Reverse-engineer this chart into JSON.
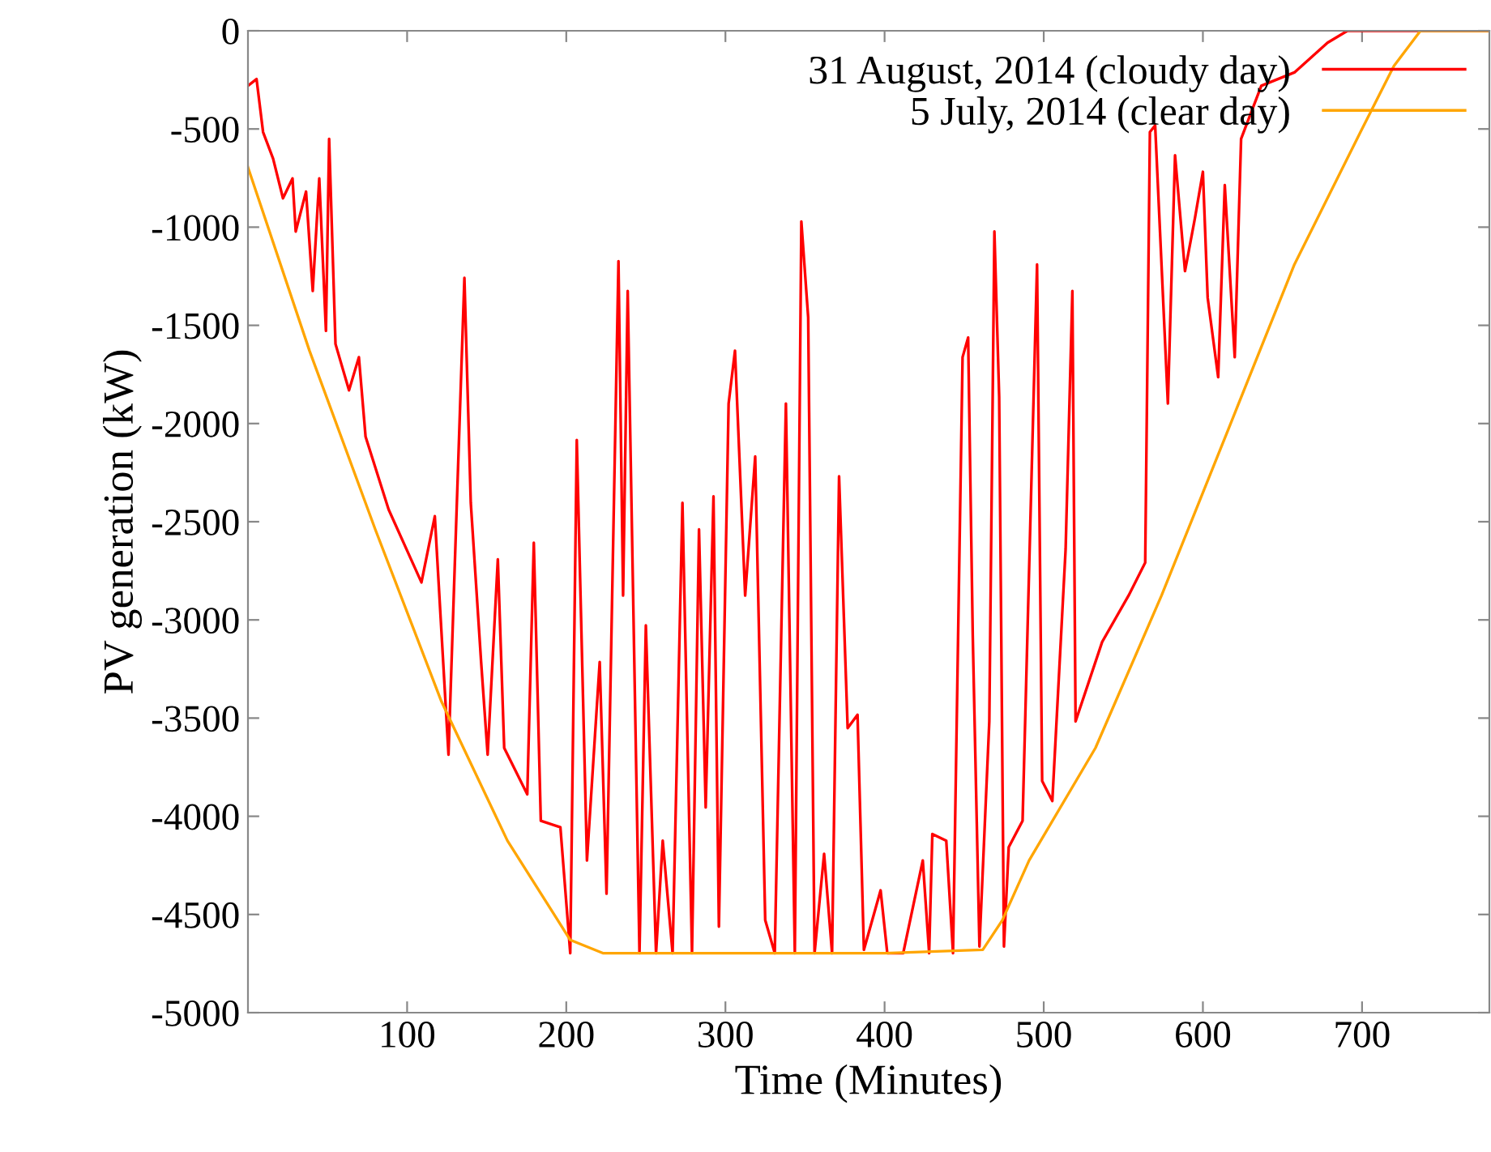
{
  "chart_data": {
    "type": "line",
    "xlabel": "Time (Minutes)",
    "ylabel": "PV generation (kW)",
    "xlim": [
      0,
      780
    ],
    "ylim": [
      -5000,
      0
    ],
    "xticks": [
      100,
      200,
      300,
      400,
      500,
      600,
      700
    ],
    "yticks": [
      0,
      -500,
      -1000,
      -1500,
      -2000,
      -2500,
      -3000,
      -3500,
      -4000,
      -4500,
      -5000
    ],
    "grid": false,
    "legend": "top right",
    "marker": "none",
    "line_style": "solid",
    "series": [
      {
        "name": "31 August, 2014 (cloudy day)",
        "color": "#ff0000",
        "x": [
          0,
          5.4,
          9.5,
          15.8,
          22,
          28,
          30,
          36.5,
          40.7,
          44.8,
          49,
          51,
          55,
          63.5,
          69.7,
          73.9,
          88.4,
          109,
          117.4,
          126,
          130,
          136,
          140,
          146.5,
          150.6,
          157,
          161,
          175.5,
          179.6,
          184,
          196.3,
          202.5,
          206.6,
          213,
          221,
          225.3,
          232.8,
          235.7,
          238.6,
          246,
          250,
          256.4,
          260.6,
          266.8,
          273,
          279,
          283.4,
          287.6,
          292.5,
          295.9,
          302,
          306,
          312.4,
          318.7,
          325,
          331,
          338,
          343.6,
          347.7,
          352,
          356,
          362,
          367,
          371.4,
          376.8,
          383,
          387,
          397.5,
          401.7,
          411.7,
          424,
          428,
          430,
          438.75,
          443,
          449,
          452.5,
          455.4,
          459.6,
          465.8,
          469,
          472,
          475,
          478,
          486.7,
          495.8,
          499,
          505.4,
          513.75,
          518,
          520,
          536.7,
          553.3,
          563.75,
          566.7,
          570,
          578,
          582.5,
          588.75,
          595,
          600,
          603,
          609.6,
          613.75,
          620,
          624,
          636.7,
          657.5,
          678.3,
          690.8,
          780
        ],
        "values": [
          -280,
          -246,
          -516,
          -651,
          -853,
          -752,
          -1022,
          -819,
          -1325,
          -752,
          -1528,
          -550,
          -1595,
          -1831,
          -1662,
          -2067,
          -2438,
          -2809,
          -2472,
          -3686,
          -2708,
          -1258,
          -2404,
          -3214,
          -3686,
          -2691,
          -3652,
          -3888,
          -2607,
          -4023,
          -4056,
          -4697,
          -2084,
          -4225,
          -3214,
          -4394,
          -1173,
          -2876,
          -1325,
          -4697,
          -3028,
          -4697,
          -4124,
          -4697,
          -2404,
          -4697,
          -2539,
          -3955,
          -2371,
          -4562,
          -1898,
          -1629,
          -2876,
          -2168,
          -4529,
          -4697,
          -1898,
          -4697,
          -971,
          -1460,
          -4697,
          -4191,
          -4697,
          -2269,
          -3551,
          -3483,
          -4680,
          -4377,
          -4697,
          -4697,
          -4225,
          -4697,
          -4090,
          -4124,
          -4697,
          -1662,
          -1562,
          -3079,
          -4663,
          -3517,
          -1022,
          -1865,
          -4663,
          -4157,
          -4023,
          -1190,
          -3820,
          -3922,
          -2640,
          -1325,
          -3517,
          -3112,
          -2876,
          -2708,
          -516,
          -482,
          -1898,
          -634,
          -1224,
          -954,
          -718,
          -1359,
          -1764,
          -786,
          -1662,
          -550,
          -280,
          -212,
          -61,
          0,
          0
        ]
      },
      {
        "name": "5 July, 2014 (clear day)",
        "color": "#ffa500",
        "x": [
          0,
          38.6,
          80,
          121.6,
          163,
          192,
          202.5,
          223,
          300,
          400,
          461.7,
          474,
          490.8,
          532.5,
          574,
          615.8,
          657.5,
          699,
          720,
          736.7,
          780
        ],
        "values": [
          -695,
          -1628,
          -2539,
          -3416,
          -4124,
          -4495,
          -4630,
          -4697,
          -4697,
          -4697,
          -4680,
          -4529,
          -4225,
          -3652,
          -2876,
          -2033,
          -1190,
          -516,
          -179,
          0,
          0
        ]
      }
    ]
  }
}
